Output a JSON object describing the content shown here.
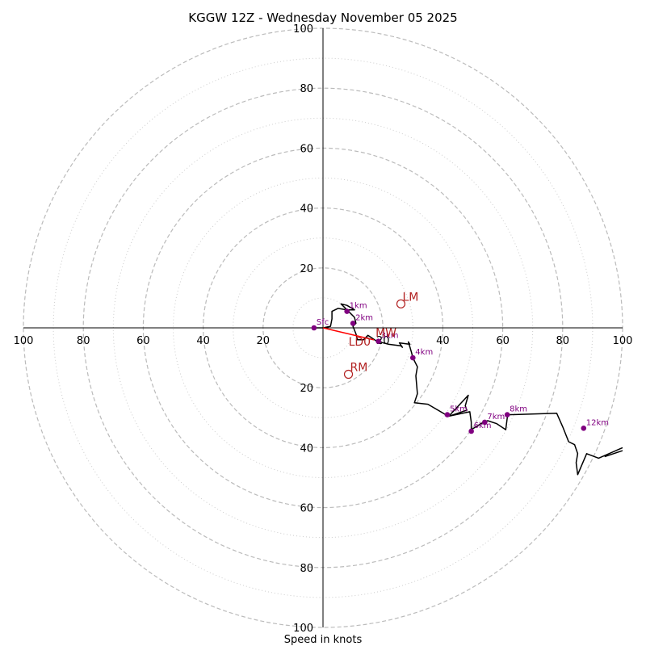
{
  "chart_data": {
    "type": "hodograph",
    "title": "KGGW 12Z - Wednesday November 05 2025",
    "xlabel": "Speed in knots",
    "range_kt": [
      -100,
      100
    ],
    "ring_major_kt": [
      20,
      40,
      60,
      80,
      100
    ],
    "ring_minor_kt": [
      10,
      30,
      50,
      70,
      90
    ],
    "tick_values": [
      20,
      40,
      60,
      80,
      100
    ],
    "tick_labels": [
      "20",
      "40",
      "60",
      "80",
      "100"
    ],
    "colors": {
      "trace": "#000000",
      "height_points": "#800080",
      "motion": "#b22222",
      "shear_vector": "#ff0000",
      "major_ring": "#bbbbbb",
      "minor_ring": "#cccccc"
    },
    "trace": [
      [
        -3,
        0
      ],
      [
        0,
        0
      ],
      [
        2.5,
        0.5
      ],
      [
        3,
        3
      ],
      [
        3,
        5.5
      ],
      [
        5,
        6.5
      ],
      [
        8,
        6
      ],
      [
        10.5,
        6
      ],
      [
        8,
        7.5
      ],
      [
        6,
        8
      ],
      [
        8,
        6
      ],
      [
        10.5,
        3.5
      ],
      [
        11,
        1.5
      ],
      [
        10,
        0.5
      ],
      [
        11,
        -2
      ],
      [
        11.5,
        -4
      ],
      [
        13.5,
        -4
      ],
      [
        15,
        -2.5
      ],
      [
        16.5,
        -3.5
      ],
      [
        18,
        -4.5
      ],
      [
        22,
        -5.5
      ],
      [
        26,
        -6
      ],
      [
        26.5,
        -6.5
      ],
      [
        25.5,
        -5
      ],
      [
        29,
        -5.5
      ],
      [
        28.5,
        -4.7
      ],
      [
        29.5,
        -8
      ],
      [
        30,
        -10
      ],
      [
        31.5,
        -13
      ],
      [
        31,
        -16
      ],
      [
        31.5,
        -22
      ],
      [
        30.5,
        -25
      ],
      [
        35,
        -25.5
      ],
      [
        41,
        -29
      ],
      [
        42,
        -29.5
      ],
      [
        45,
        -28.5
      ],
      [
        48,
        -27.5
      ],
      [
        47.5,
        -26
      ],
      [
        48.5,
        -22.5
      ],
      [
        42,
        -29.5
      ],
      [
        49,
        -28
      ],
      [
        49.5,
        -31.5
      ],
      [
        49.5,
        -33
      ],
      [
        49.5,
        -34
      ],
      [
        53.5,
        -31.5
      ],
      [
        55,
        -31
      ],
      [
        58,
        -32
      ],
      [
        61,
        -34
      ],
      [
        61.5,
        -30
      ],
      [
        62,
        -29
      ],
      [
        78,
        -28.5
      ],
      [
        80,
        -33
      ],
      [
        82,
        -38
      ],
      [
        84,
        -39
      ],
      [
        85,
        -42
      ],
      [
        84.5,
        -45
      ],
      [
        85,
        -49
      ],
      [
        88,
        -42
      ],
      [
        92,
        -43.5
      ],
      [
        100,
        -40
      ]
    ],
    "trace_tail": [
      [
        94,
        -43
      ],
      [
        100,
        -41
      ]
    ],
    "height_points": [
      {
        "label": "Sfc",
        "u": -3,
        "v": 0
      },
      {
        "label": "1km",
        "u": 8,
        "v": 5.5
      },
      {
        "label": "2km",
        "u": 10,
        "v": 1.5
      },
      {
        "label": "3km",
        "u": 18.5,
        "v": -4.5
      },
      {
        "label": "4km",
        "u": 30,
        "v": -10
      },
      {
        "label": "5km",
        "u": 41.5,
        "v": -29
      },
      {
        "label": "6km",
        "u": 49.5,
        "v": -34.5
      },
      {
        "label": "7km",
        "u": 54,
        "v": -31.5
      },
      {
        "label": "8km",
        "u": 61.5,
        "v": -29
      },
      {
        "label": "12km",
        "u": 87,
        "v": -33.5
      }
    ],
    "motion_points": [
      {
        "label": "LM",
        "u": 26,
        "v": 8
      },
      {
        "label": "MW",
        "u": 17,
        "v": -4
      },
      {
        "label": "RM",
        "u": 8.5,
        "v": -15.5
      }
    ],
    "shear_vector": {
      "label": "LD0",
      "from": [
        0,
        0
      ],
      "to": [
        17,
        -4
      ]
    }
  }
}
